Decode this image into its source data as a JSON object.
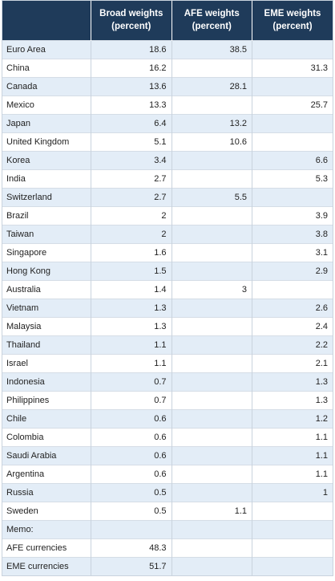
{
  "header": {
    "col_country": "",
    "col_broad": "Broad weights (percent)",
    "col_afe": "AFE weights (percent)",
    "col_eme": "EME weights (percent)"
  },
  "rows": [
    {
      "name": "Euro Area",
      "broad": "18.6",
      "afe": "38.5",
      "eme": ""
    },
    {
      "name": "China",
      "broad": "16.2",
      "afe": "",
      "eme": "31.3"
    },
    {
      "name": "Canada",
      "broad": "13.6",
      "afe": "28.1",
      "eme": ""
    },
    {
      "name": "Mexico",
      "broad": "13.3",
      "afe": "",
      "eme": "25.7"
    },
    {
      "name": "Japan",
      "broad": "6.4",
      "afe": "13.2",
      "eme": ""
    },
    {
      "name": "United Kingdom",
      "broad": "5.1",
      "afe": "10.6",
      "eme": ""
    },
    {
      "name": "Korea",
      "broad": "3.4",
      "afe": "",
      "eme": "6.6"
    },
    {
      "name": "India",
      "broad": "2.7",
      "afe": "",
      "eme": "5.3"
    },
    {
      "name": "Switzerland",
      "broad": "2.7",
      "afe": "5.5",
      "eme": ""
    },
    {
      "name": "Brazil",
      "broad": "2",
      "afe": "",
      "eme": "3.9"
    },
    {
      "name": "Taiwan",
      "broad": "2",
      "afe": "",
      "eme": "3.8"
    },
    {
      "name": "Singapore",
      "broad": "1.6",
      "afe": "",
      "eme": "3.1"
    },
    {
      "name": "Hong Kong",
      "broad": "1.5",
      "afe": "",
      "eme": "2.9"
    },
    {
      "name": "Australia",
      "broad": "1.4",
      "afe": "3",
      "eme": ""
    },
    {
      "name": "Vietnam",
      "broad": "1.3",
      "afe": "",
      "eme": "2.6"
    },
    {
      "name": "Malaysia",
      "broad": "1.3",
      "afe": "",
      "eme": "2.4"
    },
    {
      "name": "Thailand",
      "broad": "1.1",
      "afe": "",
      "eme": "2.2"
    },
    {
      "name": "Israel",
      "broad": "1.1",
      "afe": "",
      "eme": "2.1"
    },
    {
      "name": "Indonesia",
      "broad": "0.7",
      "afe": "",
      "eme": "1.3"
    },
    {
      "name": "Philippines",
      "broad": "0.7",
      "afe": "",
      "eme": "1.3"
    },
    {
      "name": "Chile",
      "broad": "0.6",
      "afe": "",
      "eme": "1.2"
    },
    {
      "name": "Colombia",
      "broad": "0.6",
      "afe": "",
      "eme": "1.1"
    },
    {
      "name": "Saudi Arabia",
      "broad": "0.6",
      "afe": "",
      "eme": "1.1"
    },
    {
      "name": "Argentina",
      "broad": "0.6",
      "afe": "",
      "eme": "1.1"
    },
    {
      "name": "Russia",
      "broad": "0.5",
      "afe": "",
      "eme": "1"
    },
    {
      "name": "Sweden",
      "broad": "0.5",
      "afe": "1.1",
      "eme": ""
    },
    {
      "name": "Memo:",
      "broad": "",
      "afe": "",
      "eme": ""
    },
    {
      "name": "AFE currencies",
      "broad": "48.3",
      "afe": "",
      "eme": ""
    },
    {
      "name": "EME currencies",
      "broad": "51.7",
      "afe": "",
      "eme": ""
    }
  ],
  "colors": {
    "header_bg": "#1f3b5a",
    "header_text": "#ffffff",
    "row_shade": "#e3edf7",
    "row_plain": "#ffffff",
    "grid_line": "#c9d3de"
  }
}
